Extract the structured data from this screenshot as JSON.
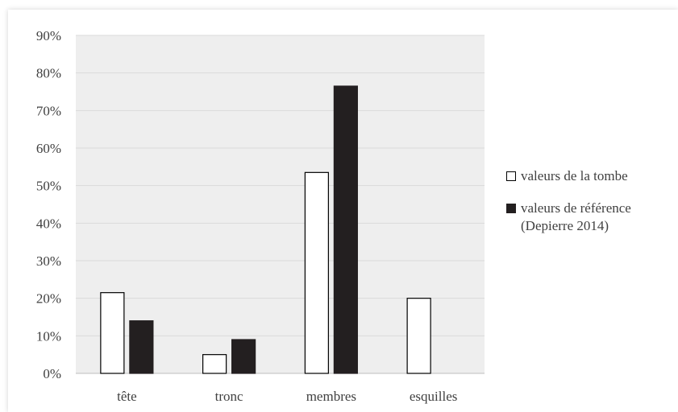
{
  "chart_data": {
    "type": "bar",
    "categories": [
      "tête",
      "tronc",
      "membres",
      "esquilles"
    ],
    "series": [
      {
        "name": "valeurs de la tombe",
        "values": [
          21.5,
          5,
          53.5,
          20
        ],
        "color": "#ffffff",
        "stroke": "#000000"
      },
      {
        "name": "valeurs de référence\n(Depierre 2014)",
        "values": [
          14,
          9,
          76.5,
          null
        ],
        "color": "#231f20",
        "stroke": "#231f20"
      }
    ],
    "yticks": [
      "0%",
      "10%",
      "20%",
      "30%",
      "40%",
      "50%",
      "60%",
      "70%",
      "80%",
      "90%"
    ],
    "ylim": [
      0,
      90
    ],
    "grid": true,
    "legend_position": "right",
    "title": "",
    "xlabel": "",
    "ylabel": ""
  }
}
